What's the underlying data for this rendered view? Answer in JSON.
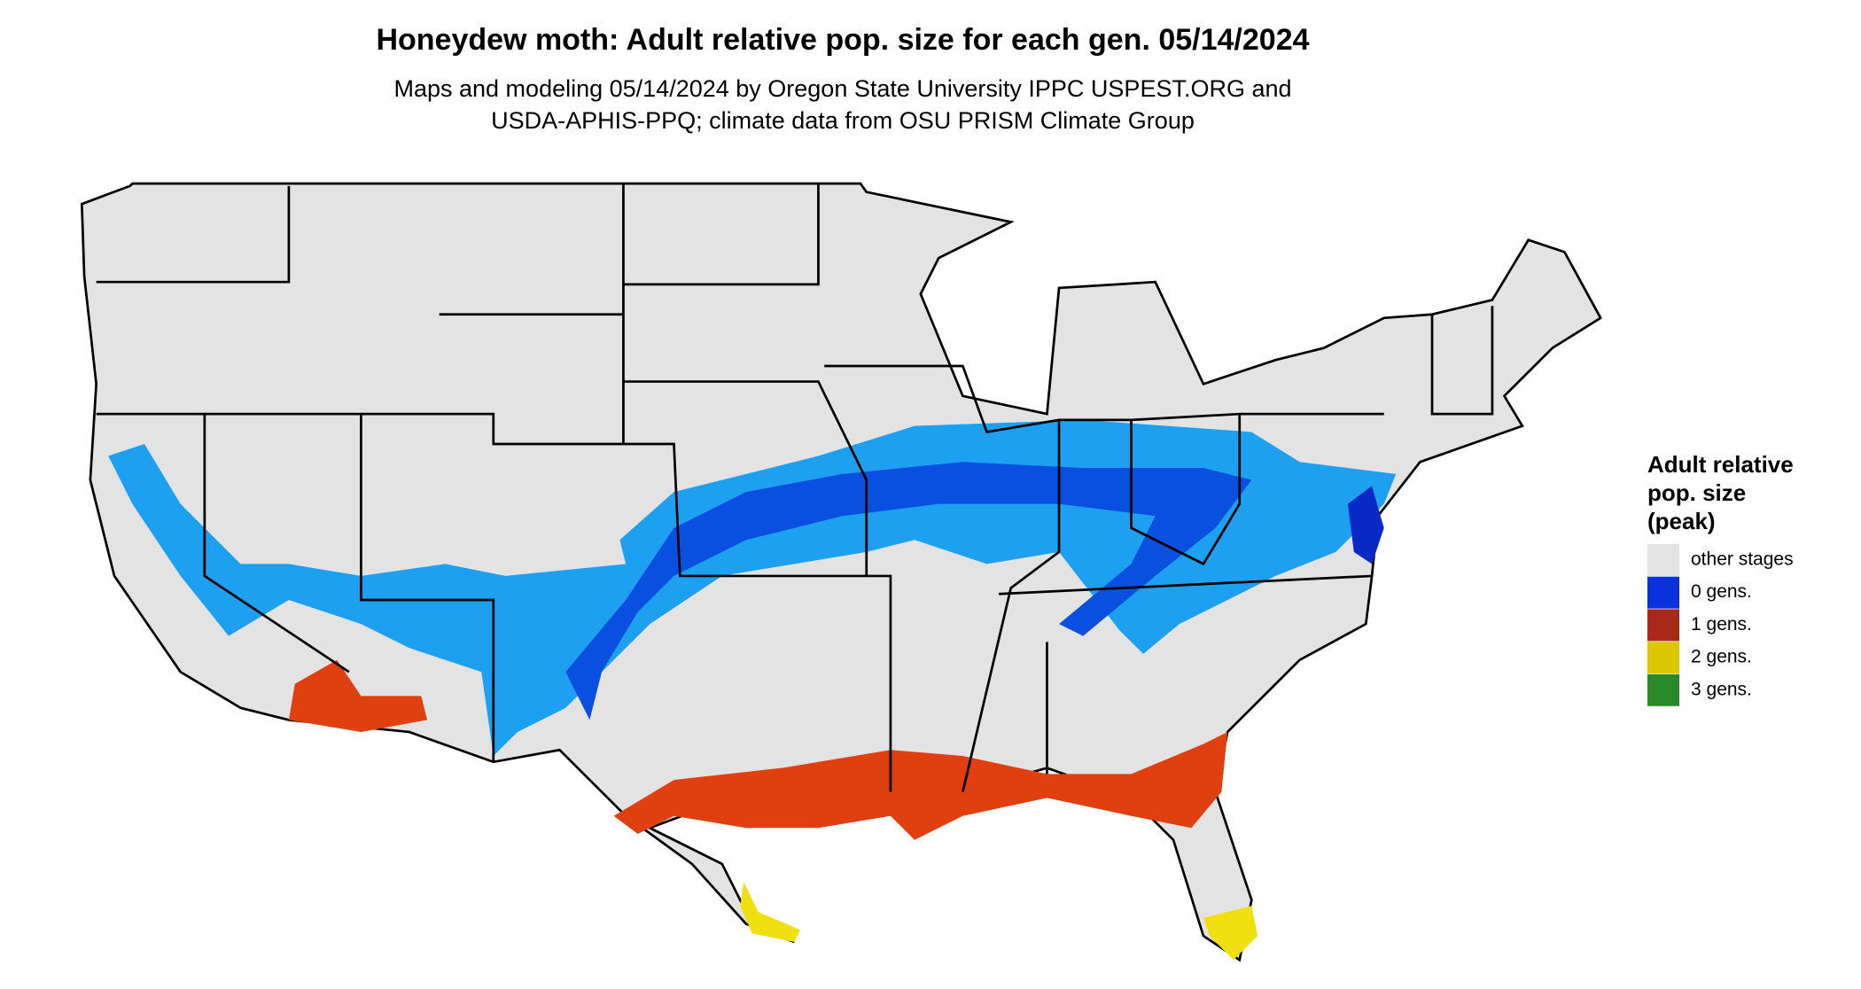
{
  "title": "Honeydew moth: Adult relative pop. size for each gen. 05/14/2024",
  "subtitle": [
    "Maps and modeling 05/14/2024 by Oregon State University IPPC USPEST.ORG and",
    "USDA-APHIS-PPQ; climate data from OSU PRISM Climate Group"
  ],
  "legend": {
    "title": [
      "Adult relative",
      "pop. size",
      "(peak)"
    ],
    "items": [
      {
        "label": "other stages",
        "color": "#e3e3e3"
      },
      {
        "label": "0 gens.",
        "color": "#0a32dc"
      },
      {
        "label": "1 gens.",
        "color": "#a8281a"
      },
      {
        "label": "2 gens.",
        "color": "#dcc800"
      },
      {
        "label": "3 gens.",
        "color": "#2a8a2a"
      }
    ]
  }
}
